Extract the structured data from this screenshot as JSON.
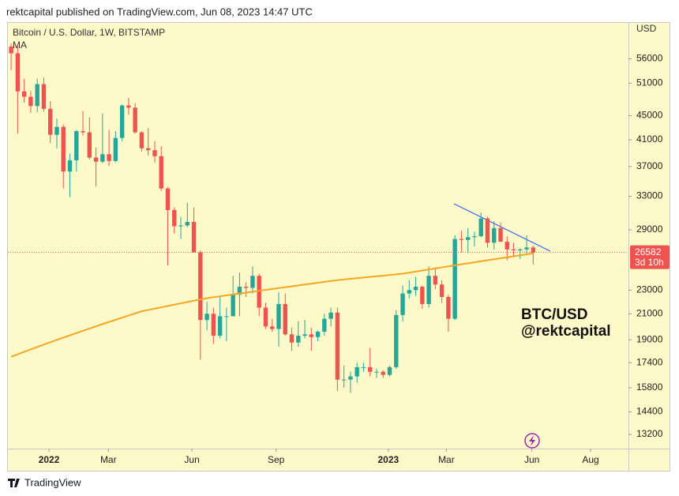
{
  "header": "rektcapital published on TradingView.com, Jun 08, 2023 14:47 UTC",
  "footer": "TradingView",
  "chart_data": {
    "type": "candlestick",
    "title": "Bitcoin / U.S. Dollar, 1W, BITSTAMP",
    "y_axis_label": "USD",
    "log_scale": true,
    "grid": false,
    "up_color": "#26a69a",
    "down_color": "#ef5350",
    "open": [
      58700,
      57200,
      49400,
      48400,
      46700,
      50800,
      46200,
      41800,
      43100,
      36300,
      37900,
      42400,
      42200,
      38300,
      37700,
      38800,
      37800,
      41300,
      46800,
      46400,
      42200,
      39700,
      39400,
      38500,
      34000,
      31300,
      29400,
      29500,
      29900,
      26600,
      20500,
      21000,
      19300,
      20800,
      20800,
      22600,
      23300,
      23200,
      24300,
      21500,
      20000,
      19800,
      21800,
      19400,
      18800,
      19300,
      19400,
      19200,
      19600,
      20600,
      21100,
      16300,
      16300,
      16500,
      17100,
      17100,
      16800,
      16800,
      16600,
      17100,
      20900,
      22700,
      23000,
      23300,
      21800,
      24300,
      23500,
      22400,
      20600,
      28000,
      27900,
      28200,
      28300,
      30300,
      27600,
      29200,
      27700,
      26900,
      26800,
      26900,
      27100
    ],
    "high": [
      59400,
      59000,
      51900,
      49500,
      51900,
      52100,
      47600,
      44500,
      43500,
      38900,
      42600,
      45800,
      44700,
      39800,
      45400,
      42600,
      42400,
      47000,
      48200,
      47200,
      42400,
      42900,
      40800,
      40000,
      34200,
      31600,
      30500,
      32200,
      31600,
      26800,
      22000,
      21500,
      22400,
      21500,
      24300,
      24600,
      23700,
      25200,
      24500,
      21900,
      20600,
      22800,
      22700,
      19900,
      20400,
      20500,
      19900,
      19700,
      21000,
      21500,
      21500,
      17200,
      16800,
      17400,
      17400,
      18400,
      17000,
      16900,
      17200,
      21300,
      23400,
      23900,
      24200,
      23400,
      25200,
      25100,
      23900,
      22600,
      28400,
      28900,
      29200,
      28800,
      31000,
      30500,
      30000,
      29800,
      28300,
      27600,
      27000,
      28400,
      27300
    ],
    "low": [
      53600,
      42000,
      47300,
      45500,
      45600,
      45700,
      40500,
      39700,
      34000,
      32900,
      36300,
      41700,
      38000,
      34300,
      37500,
      37100,
      37600,
      40800,
      45200,
      42000,
      39200,
      38600,
      37600,
      33700,
      25300,
      28600,
      28000,
      29300,
      26600,
      17600,
      19700,
      18700,
      19100,
      18900,
      20800,
      20800,
      22400,
      22700,
      20800,
      19800,
      19600,
      18500,
      19300,
      18200,
      18500,
      19100,
      18200,
      18900,
      19300,
      20000,
      15600,
      15800,
      15500,
      16100,
      16800,
      16500,
      16400,
      16400,
      16500,
      17000,
      20400,
      22300,
      22500,
      21400,
      21500,
      23100,
      21900,
      19600,
      20500,
      26600,
      26500,
      27200,
      28200,
      27100,
      26900,
      27700,
      25800,
      26100,
      25900,
      26500,
      25400
    ],
    "close": [
      57200,
      49400,
      48400,
      46700,
      50800,
      46200,
      41800,
      43100,
      36300,
      37900,
      42400,
      42200,
      38300,
      37700,
      38800,
      37800,
      41300,
      46800,
      46400,
      42200,
      39700,
      39400,
      38500,
      34000,
      31300,
      29400,
      29500,
      29900,
      26600,
      20500,
      21000,
      19300,
      20800,
      20800,
      22600,
      23300,
      23200,
      24300,
      21500,
      20000,
      19800,
      21800,
      19400,
      18800,
      19300,
      19400,
      19200,
      19600,
      20600,
      21100,
      16300,
      16300,
      16500,
      17100,
      17100,
      16800,
      16800,
      16600,
      17100,
      20900,
      22700,
      23000,
      23300,
      21800,
      24300,
      23500,
      22400,
      20600,
      28000,
      27900,
      28200,
      28300,
      30300,
      27600,
      29200,
      27700,
      26900,
      26800,
      26900,
      27100,
      26582
    ],
    "ma": {
      "name": "MA",
      "color": "#f5a623",
      "values": [
        17800,
        17970,
        18140,
        18310,
        18480,
        18650,
        18820,
        18990,
        19160,
        19330,
        19500,
        19670,
        19840,
        20010,
        20180,
        20350,
        20520,
        20690,
        20860,
        21030,
        21200,
        21310,
        21420,
        21530,
        21640,
        21750,
        21860,
        21970,
        22080,
        22190,
        22300,
        22380,
        22460,
        22540,
        22620,
        22700,
        22780,
        22860,
        22940,
        23020,
        23100,
        23180,
        23260,
        23340,
        23420,
        23500,
        23580,
        23660,
        23740,
        23820,
        23900,
        23960,
        24020,
        24080,
        24140,
        24200,
        24260,
        24320,
        24380,
        24440,
        24500,
        24600,
        24700,
        24800,
        24900,
        25000,
        25100,
        25200,
        25300,
        25400,
        25500,
        25600,
        25700,
        25800,
        25900,
        26000,
        26100,
        26200,
        26300,
        26400,
        26500
      ]
    },
    "countdown": "3d 10h",
    "ylim": [
      12500,
      64100
    ],
    "yticks": [
      13200,
      14400,
      15800,
      17400,
      19000,
      21000,
      23000,
      29000,
      33000,
      37000,
      41000,
      45000,
      51000,
      56000
    ],
    "xlim": [
      -0.5,
      94.6
    ],
    "xticks": [
      {
        "value": 5.8,
        "label": "2022"
      },
      {
        "value": 14.9,
        "label": "Mar"
      },
      {
        "value": 27.7,
        "label": "Jun"
      },
      {
        "value": 40.6,
        "label": "Sep"
      },
      {
        "value": 57.8,
        "label": "2023"
      },
      {
        "value": 66.7,
        "label": "Mar"
      },
      {
        "value": 79.8,
        "label": "Jun"
      },
      {
        "value": 88.8,
        "label": "Aug"
      }
    ],
    "annotations": [
      "BTC/USD",
      "@rektcapital"
    ]
  }
}
